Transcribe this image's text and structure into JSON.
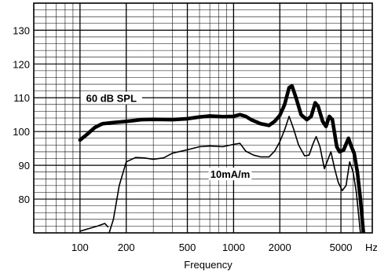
{
  "chart_data": {
    "type": "line",
    "xlabel": "Frequency",
    "x_unit_label": "Hz",
    "x_scale": "log",
    "xlim": [
      50,
      8000
    ],
    "ylim": [
      70,
      138
    ],
    "grid": true,
    "x_ticks": [
      {
        "value": 100,
        "label": "100"
      },
      {
        "value": 200,
        "label": "200"
      },
      {
        "value": 500,
        "label": "500"
      },
      {
        "value": 1000,
        "label": "1000"
      },
      {
        "value": 2000,
        "label": "2000"
      },
      {
        "value": 5000,
        "label": "5000"
      }
    ],
    "y_ticks": [
      {
        "value": 80,
        "label": "80"
      },
      {
        "value": 90,
        "label": "90"
      },
      {
        "value": 100,
        "label": "100"
      },
      {
        "value": 110,
        "label": "110"
      },
      {
        "value": 120,
        "label": "120"
      },
      {
        "value": 130,
        "label": "130"
      }
    ],
    "series": [
      {
        "name": "60 dB SPL",
        "label_at": {
          "x": 160,
          "y": 109
        },
        "points": [
          [
            100,
            97.5
          ],
          [
            110,
            99
          ],
          [
            125,
            101.2
          ],
          [
            140,
            102.3
          ],
          [
            160,
            102.6
          ],
          [
            200,
            103
          ],
          [
            250,
            103.5
          ],
          [
            300,
            103.6
          ],
          [
            400,
            103.5
          ],
          [
            500,
            103.8
          ],
          [
            600,
            104.3
          ],
          [
            700,
            104.6
          ],
          [
            850,
            104.4
          ],
          [
            1000,
            104.5
          ],
          [
            1100,
            105
          ],
          [
            1200,
            104.5
          ],
          [
            1300,
            103.5
          ],
          [
            1500,
            102.3
          ],
          [
            1700,
            101.8
          ],
          [
            1850,
            103
          ],
          [
            2000,
            104.8
          ],
          [
            2150,
            108
          ],
          [
            2300,
            113
          ],
          [
            2400,
            113.5
          ],
          [
            2550,
            110
          ],
          [
            2750,
            105
          ],
          [
            3000,
            103.5
          ],
          [
            3200,
            104.5
          ],
          [
            3400,
            108.5
          ],
          [
            3550,
            107.5
          ],
          [
            3800,
            103
          ],
          [
            4000,
            101.5
          ],
          [
            4200,
            104.5
          ],
          [
            4400,
            103.5
          ],
          [
            4700,
            95.5
          ],
          [
            4900,
            94
          ],
          [
            5200,
            94.5
          ],
          [
            5600,
            98
          ],
          [
            5800,
            96
          ],
          [
            6100,
            93.5
          ],
          [
            6400,
            88
          ],
          [
            6700,
            80
          ],
          [
            7000,
            70
          ]
        ]
      },
      {
        "name": "10mA/m",
        "label_at": {
          "x": 950,
          "y": 86.5
        },
        "points": [
          [
            150,
            68
          ],
          [
            165,
            74
          ],
          [
            180,
            84
          ],
          [
            200,
            91
          ],
          [
            230,
            92.3
          ],
          [
            260,
            92.2
          ],
          [
            300,
            91.8
          ],
          [
            350,
            92.2
          ],
          [
            400,
            93.6
          ],
          [
            500,
            94.6
          ],
          [
            600,
            95.5
          ],
          [
            700,
            95.7
          ],
          [
            850,
            95.5
          ],
          [
            1000,
            96.2
          ],
          [
            1100,
            96.5
          ],
          [
            1200,
            94.2
          ],
          [
            1350,
            93
          ],
          [
            1500,
            92.5
          ],
          [
            1700,
            92.5
          ],
          [
            1850,
            94.2
          ],
          [
            2000,
            97
          ],
          [
            2150,
            100.5
          ],
          [
            2300,
            104.5
          ],
          [
            2450,
            101
          ],
          [
            2650,
            96
          ],
          [
            2900,
            92.8
          ],
          [
            3100,
            93
          ],
          [
            3300,
            96.5
          ],
          [
            3450,
            98.5
          ],
          [
            3650,
            95.5
          ],
          [
            3900,
            89
          ],
          [
            4100,
            91.5
          ],
          [
            4300,
            94
          ],
          [
            4550,
            89
          ],
          [
            4800,
            85
          ],
          [
            5100,
            82.5
          ],
          [
            5400,
            84
          ],
          [
            5700,
            91
          ],
          [
            6000,
            88
          ],
          [
            6300,
            82
          ],
          [
            6700,
            70
          ]
        ]
      },
      {
        "name": "",
        "points": [
          [
            100,
            70.5
          ],
          [
            115,
            71.3
          ],
          [
            130,
            72
          ],
          [
            145,
            72.8
          ],
          [
            152,
            71.8
          ]
        ]
      }
    ]
  }
}
